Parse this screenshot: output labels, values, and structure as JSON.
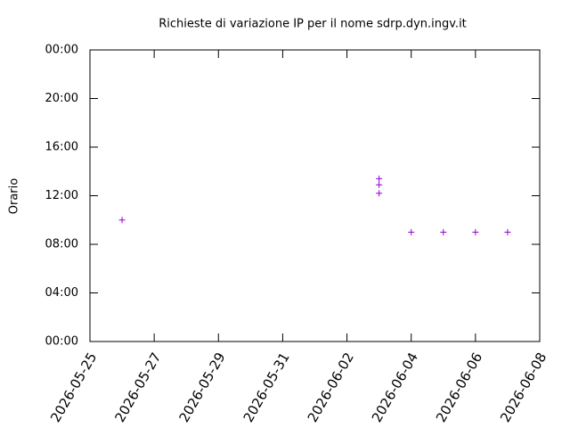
{
  "chart_data": {
    "type": "scatter",
    "title": "Richieste di variazione IP per il nome sdrp.dyn.ingv.it",
    "y_label": "Orario",
    "color": "#9400d3",
    "x": [
      "2026-05-26",
      "2026-06-03",
      "2026-06-03",
      "2026-06-03",
      "2026-06-04",
      "2026-06-05",
      "2026-06-06",
      "2026-06-07"
    ],
    "values": [
      10,
      13.4,
      12.9,
      12.2,
      9,
      9,
      9,
      9
    ],
    "xlim": [
      "2026-05-25",
      "2026-06-08"
    ],
    "xticks": [
      "2026-05-25",
      "2026-05-27",
      "2026-05-29",
      "2026-05-31",
      "2026-06-02",
      "2026-06-04",
      "2026-06-06",
      "2026-06-08"
    ],
    "ylim": [
      0,
      24
    ],
    "yticks": [
      {
        "value": 0,
        "label": "00:00"
      },
      {
        "value": 4,
        "label": "04:00"
      },
      {
        "value": 8,
        "label": "08:00"
      },
      {
        "value": 12,
        "label": "12:00"
      },
      {
        "value": 16,
        "label": "16:00"
      },
      {
        "value": 20,
        "label": "20:00"
      },
      {
        "value": 24,
        "label": "00:00"
      }
    ]
  }
}
